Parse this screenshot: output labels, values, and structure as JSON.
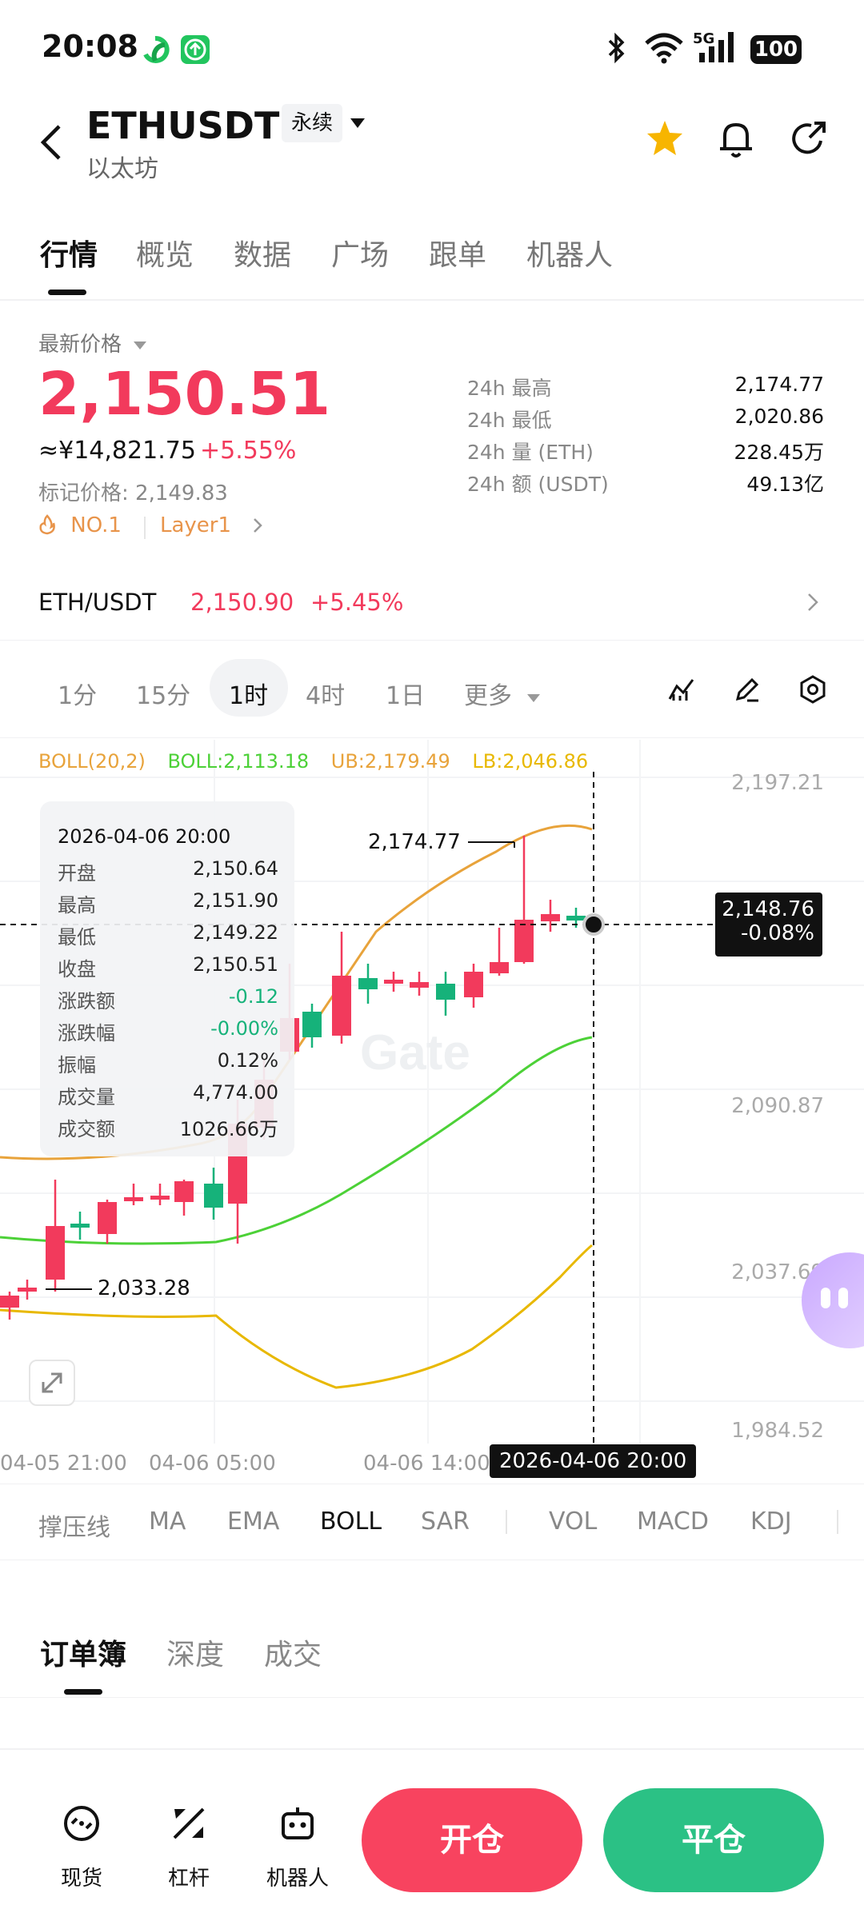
{
  "status_bar": {
    "time": "20:08",
    "network": "5G",
    "battery": "100"
  },
  "header": {
    "symbol": "ETHUSDT",
    "perp_label": "永续",
    "subtitle": "以太坊"
  },
  "tabs": [
    "行情",
    "概览",
    "数据",
    "广场",
    "跟单",
    "机器人"
  ],
  "price_panel": {
    "latest_label": "最新价格",
    "latest_price": "2,150.51",
    "cny_price": "≈¥14,821.75",
    "change_pct": "+5.55%",
    "mark_price": "标记价格: 2,149.83",
    "rank_tag": "NO.1",
    "sector_tag": "Layer1",
    "stats": [
      {
        "label": "24h  最高",
        "value": "2,174.77"
      },
      {
        "label": "24h  最低",
        "value": "2,020.86"
      },
      {
        "label": "24h  量 (ETH)",
        "value": "228.45万"
      },
      {
        "label": "24h  额 (USDT)",
        "value": "49.13亿"
      }
    ]
  },
  "spot_row": {
    "pair": "ETH/USDT",
    "price": "2,150.90",
    "change": "+5.45%"
  },
  "intervals": [
    "1分",
    "15分",
    "1时",
    "4时",
    "1日",
    "更多"
  ],
  "active_interval": "1时",
  "chart": {
    "boll_label": "BOLL(20,2)",
    "boll_mid": "BOLL:2,113.18",
    "boll_ub": "UB:2,179.49",
    "boll_lb": "LB:2,046.86",
    "y_ticks": [
      "2,197.21",
      "2,090.87",
      "2,037.69",
      "1,984.52"
    ],
    "x_ticks": [
      "04-05 21:00",
      "04-06 05:00",
      "04-06 14:00"
    ],
    "cursor_time": "2026-04-06 20:00",
    "cursor_price": "2,148.76",
    "cursor_change": "-0.08%",
    "high_marker": "2,174.77",
    "low_marker": "2,033.28",
    "watermark": "Gate",
    "colors": {
      "up": "#16b27a",
      "down": "#f23a5c",
      "mid": "#4cd137",
      "upper": "#e8a33b",
      "lower": "#e8b800"
    }
  },
  "tooltip": {
    "date": "2026-04-06 20:00",
    "rows": [
      {
        "k": "开盘",
        "v": "2,150.64"
      },
      {
        "k": "最高",
        "v": "2,151.90"
      },
      {
        "k": "最低",
        "v": "2,149.22"
      },
      {
        "k": "收盘",
        "v": "2,150.51"
      },
      {
        "k": "涨跌额",
        "v": "-0.12"
      },
      {
        "k": "涨跌幅",
        "v": "-0.00%"
      },
      {
        "k": "振幅",
        "v": "0.12%"
      },
      {
        "k": "成交量",
        "v": "4,774.00"
      },
      {
        "k": "成交额",
        "v": "1026.66万"
      }
    ]
  },
  "indicators": [
    "撑压线",
    "MA",
    "EMA",
    "BOLL",
    "SAR",
    "VOL",
    "MACD",
    "KDJ"
  ],
  "active_indicator": "BOLL",
  "orderbook_tabs": [
    "订单簿",
    "深度",
    "成交"
  ],
  "bottom_nav": [
    "现货",
    "杠杆",
    "机器人"
  ],
  "open_button": "开仓",
  "close_button": "平仓"
}
